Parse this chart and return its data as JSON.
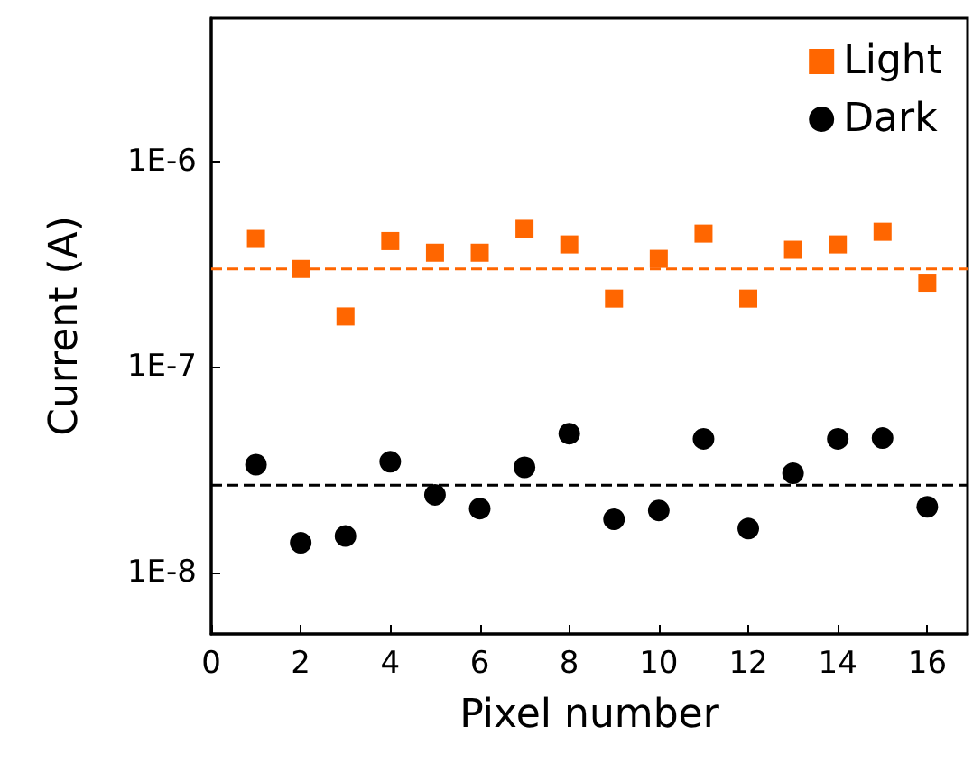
{
  "chart_data": {
    "type": "scatter",
    "xlabel": "Pixel number",
    "ylabel": "Current (A)",
    "log": "y",
    "x": [
      1,
      2,
      3,
      4,
      5,
      6,
      7,
      8,
      9,
      10,
      11,
      12,
      13,
      14,
      15,
      16
    ],
    "series": [
      {
        "name": "Light",
        "color": "#ff6600",
        "marker": "square",
        "values": [
          4.2e-07,
          3e-07,
          1.76e-07,
          4.1e-07,
          3.6e-07,
          3.6e-07,
          4.7e-07,
          3.95e-07,
          2.15e-07,
          3.36e-07,
          4.46e-07,
          2.15e-07,
          3.72e-07,
          3.95e-07,
          4.55e-07,
          2.57e-07
        ]
      },
      {
        "name": "Dark",
        "color": "#000000",
        "marker": "circle",
        "values": [
          3.34e-08,
          1.39e-08,
          1.5e-08,
          3.45e-08,
          2.38e-08,
          2.04e-08,
          3.24e-08,
          4.73e-08,
          1.81e-08,
          2e-08,
          4.46e-08,
          1.63e-08,
          3.03e-08,
          4.46e-08,
          4.5e-08,
          2.08e-08
        ]
      }
    ],
    "ref_lines": [
      {
        "axis": "y",
        "value": 3e-07,
        "color": "#ff6600",
        "line_style": "dashed"
      },
      {
        "axis": "y",
        "value": 2.65e-08,
        "color": "#000000",
        "line_style": "dashed"
      }
    ],
    "xlim": [
      0,
      16.9
    ],
    "xticks": [
      0,
      2,
      4,
      6,
      8,
      10,
      12,
      14,
      16
    ],
    "ylim": [
      5e-09,
      5e-06
    ],
    "yticks": [
      {
        "value": 1e-08,
        "label": "1E-8"
      },
      {
        "value": 1e-07,
        "label": "1E-7"
      },
      {
        "value": 1e-06,
        "label": "1E-6"
      }
    ],
    "grid": false,
    "legend": "top right"
  }
}
